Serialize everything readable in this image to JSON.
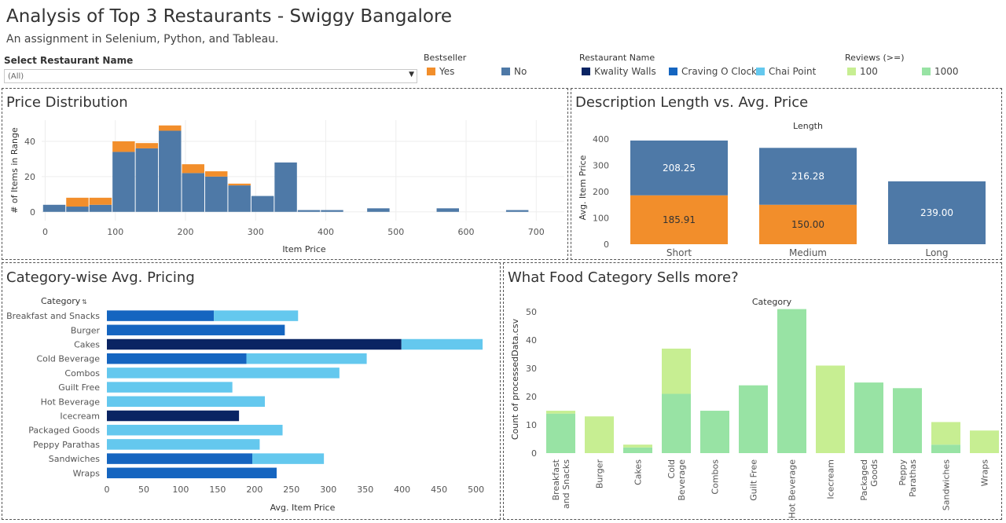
{
  "header": {
    "title": "Analysis of Top 3 Restaurants - Swiggy Bangalore",
    "subtitle": "An assignment in Selenium, Python, and Tableau."
  },
  "filter": {
    "label": "Select Restaurant Name",
    "value": "(All)"
  },
  "legends": {
    "bestseller": {
      "title": "Bestseller",
      "items": [
        {
          "label": "Yes",
          "color": "#f28e2b"
        },
        {
          "label": "No",
          "color": "#4e79a7"
        }
      ]
    },
    "restaurant": {
      "title": "Restaurant Name",
      "items": [
        {
          "label": "Kwality Walls",
          "color": "#0a2463"
        },
        {
          "label": "Craving O Clock",
          "color": "#1565c0"
        },
        {
          "label": "Chai Point",
          "color": "#64c8ee"
        }
      ]
    },
    "reviews": {
      "title": "Reviews (>=)",
      "items": [
        {
          "label": "100",
          "color": "#c7ee92"
        },
        {
          "label": "1000",
          "color": "#98e3a4"
        }
      ]
    }
  },
  "panels": {
    "price_distribution": {
      "title": "Price Distribution"
    },
    "desc_length": {
      "title": "Description Length vs. Avg. Price"
    },
    "category_pricing": {
      "title": "Category-wise Avg. Pricing"
    },
    "food_category": {
      "title": "What Food Category Sells more?"
    }
  },
  "chart_data": [
    {
      "type": "bar",
      "title": "Price Distribution",
      "xlabel": "Item Price",
      "ylabel": "# of Items in Range",
      "bin_width": 33,
      "bin_start": -3,
      "xlim": [
        -5,
        740
      ],
      "xticks": [
        0,
        100,
        200,
        300,
        400,
        500,
        600,
        700
      ],
      "ylim": [
        -5,
        52
      ],
      "yticks": [
        0,
        20,
        40
      ],
      "series": [
        {
          "name": "No",
          "color": "#4e79a7",
          "values": [
            4,
            3,
            4,
            34,
            36,
            46,
            22,
            20,
            15,
            9,
            28,
            1,
            1,
            0,
            2,
            0,
            0,
            2,
            0,
            0,
            1
          ]
        },
        {
          "name": "Yes",
          "color": "#f28e2b",
          "values": [
            0,
            5,
            4,
            6,
            3,
            3,
            5,
            3,
            1,
            0,
            0,
            0,
            0,
            0,
            0,
            0,
            0,
            0,
            0,
            0,
            0
          ]
        }
      ]
    },
    {
      "type": "bar",
      "title": "Length",
      "ylabel": "Avg. Item Price",
      "categories": [
        "Short",
        "Medium",
        "Long"
      ],
      "ylim": [
        0,
        400
      ],
      "yticks": [
        0,
        100,
        200,
        300,
        400
      ],
      "series": [
        {
          "name": "Yes",
          "color": "#f28e2b",
          "values": [
            185.91,
            150.0,
            0
          ]
        },
        {
          "name": "No",
          "color": "#4e79a7",
          "values": [
            208.25,
            216.28,
            239.0
          ]
        }
      ],
      "labels": {
        "Yes": [
          "185.91",
          "150.00",
          ""
        ],
        "No": [
          "208.25",
          "216.28",
          "239.00"
        ]
      }
    },
    {
      "type": "bar",
      "orientation": "horizontal",
      "title": "Category",
      "xlabel": "Avg. Item Price",
      "xlim": [
        0,
        510
      ],
      "xticks": [
        0,
        50,
        100,
        150,
        200,
        250,
        300,
        350,
        400,
        450,
        500
      ],
      "categories": [
        "Breakfast and Snacks",
        "Burger",
        "Cakes",
        "Cold Beverage",
        "Combos",
        "Guilt Free",
        "Hot Beverage",
        "Icecream",
        "Packaged Goods",
        "Peppy Parathas",
        "Sandwiches",
        "Wraps"
      ],
      "segments": [
        [
          {
            "series": "Craving O Clock",
            "value": 145
          },
          {
            "series": "Chai Point",
            "value": 114
          }
        ],
        [
          {
            "series": "Craving O Clock",
            "value": 241
          }
        ],
        [
          {
            "series": "Kwality Walls",
            "value": 399
          },
          {
            "series": "Chai Point",
            "value": 110
          }
        ],
        [
          {
            "series": "Craving O Clock",
            "value": 189
          },
          {
            "series": "Chai Point",
            "value": 163
          }
        ],
        [
          {
            "series": "Chai Point",
            "value": 315
          }
        ],
        [
          {
            "series": "Chai Point",
            "value": 170
          }
        ],
        [
          {
            "series": "Chai Point",
            "value": 214
          }
        ],
        [
          {
            "series": "Kwality Walls",
            "value": 179
          }
        ],
        [
          {
            "series": "Chai Point",
            "value": 238
          }
        ],
        [
          {
            "series": "Chai Point",
            "value": 207
          }
        ],
        [
          {
            "series": "Craving O Clock",
            "value": 197
          },
          {
            "series": "Chai Point",
            "value": 97
          }
        ],
        [
          {
            "series": "Craving O Clock",
            "value": 230
          }
        ]
      ],
      "colors": {
        "Kwality Walls": "#0a2463",
        "Craving O Clock": "#1565c0",
        "Chai Point": "#64c8ee"
      }
    },
    {
      "type": "bar",
      "title": "Category",
      "ylabel": "Count of processedData.csv",
      "categories": [
        "Breakfast and Snacks",
        "Burger",
        "Cakes",
        "Cold Beverage",
        "Combos",
        "Guilt Free",
        "Hot Beverage",
        "Icecream",
        "Packaged Goods",
        "Peppy Parathas",
        "Sandwiches",
        "Wraps"
      ],
      "category_labels": [
        [
          "Breakfast",
          "and Snacks"
        ],
        [
          "Burger"
        ],
        [
          "Cakes"
        ],
        [
          "Cold",
          "Beverage"
        ],
        [
          "Combos"
        ],
        [
          "Guilt Free"
        ],
        [
          "Hot Beverage"
        ],
        [
          "Icecream"
        ],
        [
          "Packaged",
          "Goods"
        ],
        [
          "Peppy",
          "Parathas"
        ],
        [
          "Sandwiches"
        ],
        [
          "Wraps"
        ]
      ],
      "ylim": [
        0,
        52
      ],
      "yticks": [
        0,
        10,
        20,
        30,
        40,
        50
      ],
      "series": [
        {
          "name": "1000",
          "color": "#98e3a4",
          "values": [
            14,
            0,
            2,
            21,
            15,
            24,
            51,
            0,
            25,
            23,
            3,
            0
          ]
        },
        {
          "name": "100",
          "color": "#c7ee92",
          "values": [
            1,
            13,
            1,
            16,
            0,
            0,
            0,
            31,
            0,
            0,
            8,
            8
          ]
        }
      ]
    }
  ]
}
